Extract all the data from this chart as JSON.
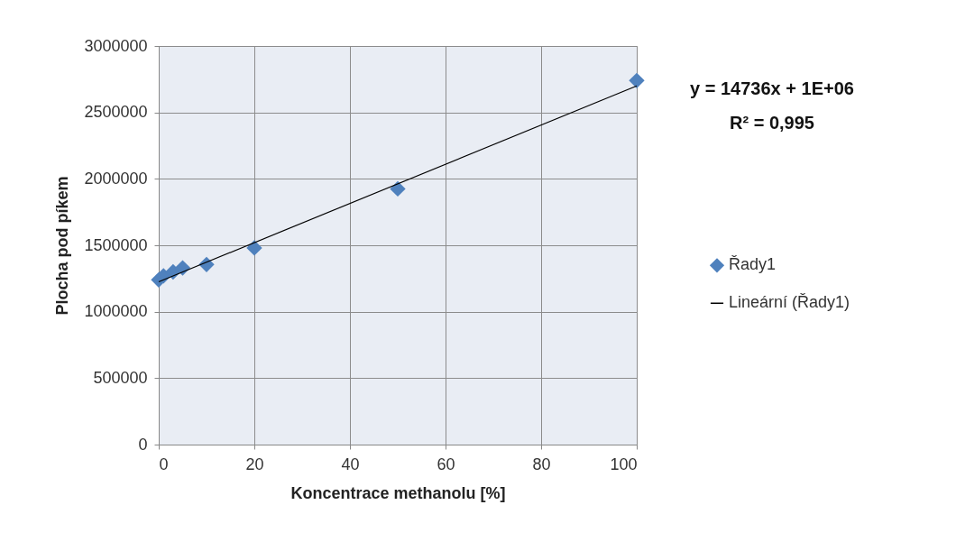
{
  "chart_data": {
    "type": "scatter",
    "xlabel": "Koncentrace methanolu [%]",
    "ylabel": "Plocha pod píkem",
    "x": [
      0,
      1,
      3,
      5,
      10,
      20,
      50,
      100
    ],
    "series": [
      {
        "name": "Řady1",
        "color": "#4f81bd",
        "marker": "diamond",
        "values": [
          1240000,
          1270000,
          1300000,
          1330000,
          1355000,
          1480000,
          1925000,
          2740000
        ]
      },
      {
        "name": "Lineární (Řady1)",
        "type": "line",
        "color": "#000000",
        "marker": "none",
        "x": [
          0,
          100
        ],
        "values": [
          1225000,
          2700000
        ]
      }
    ],
    "xlim": [
      0,
      100
    ],
    "xticks": [
      0,
      20,
      40,
      60,
      80,
      100
    ],
    "ylim": [
      0,
      3000000
    ],
    "yticks": [
      0,
      500000,
      1000000,
      1500000,
      2000000,
      2500000,
      3000000
    ],
    "grid": true,
    "legend": "right",
    "annotations": [
      "y = 14736x + 1E+06",
      "R² = 0,995"
    ]
  }
}
